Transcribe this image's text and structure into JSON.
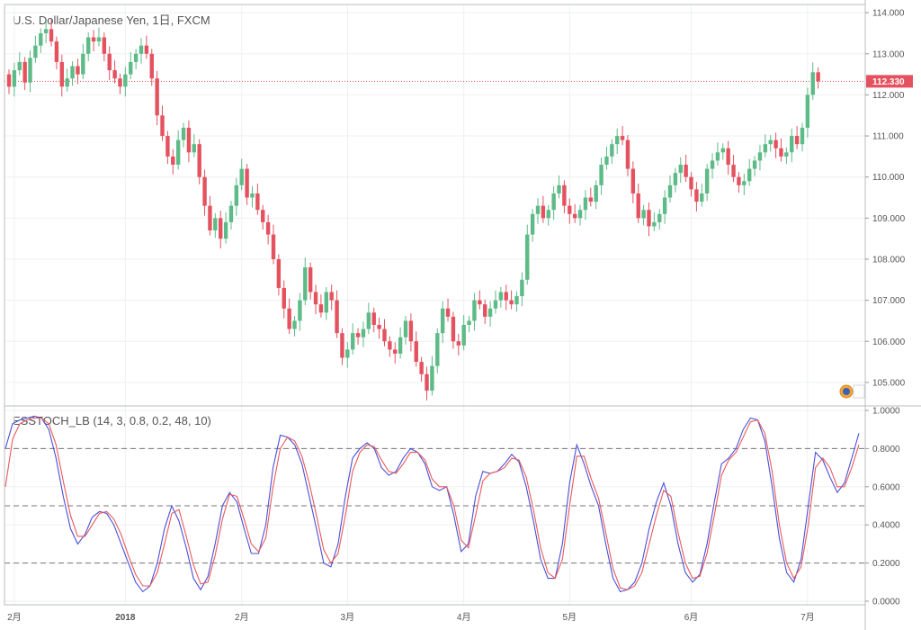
{
  "chart_data": [
    {
      "type": "candlestick",
      "title": "U.S. Dollar/Japanese Yen, 1日, FXCM",
      "ylim": [
        104.45,
        114.2
      ],
      "yticks": [
        105.0,
        106.0,
        107.0,
        108.0,
        109.0,
        110.0,
        111.0,
        112.0,
        113.0,
        114.0
      ],
      "ytick_labels": [
        "105.000",
        "106.000",
        "107.000",
        "108.000",
        "109.000",
        "110.000",
        "111.000",
        "112.000",
        "113.000",
        "114.000"
      ],
      "last_price": 112.33,
      "last_price_label": "112.330",
      "xticks": [
        {
          "index": 1,
          "label": "2月"
        },
        {
          "index": 22,
          "label": "2018"
        },
        {
          "index": 44,
          "label": "2月"
        },
        {
          "index": 64,
          "label": "3月"
        },
        {
          "index": 86,
          "label": "4月"
        },
        {
          "index": 106,
          "label": "5月"
        },
        {
          "index": 129,
          "label": "6月"
        },
        {
          "index": 151,
          "label": "7月"
        }
      ],
      "up_color": "#5dbb87",
      "down_color": "#e4525f",
      "close": [
        112.2,
        112.6,
        112.8,
        112.3,
        112.9,
        113.2,
        113.5,
        113.6,
        113.3,
        112.8,
        112.2,
        112.4,
        112.7,
        112.5,
        113.0,
        113.4,
        113.3,
        113.4,
        113.0,
        112.6,
        112.4,
        112.2,
        112.5,
        112.8,
        113.0,
        113.2,
        113.0,
        112.4,
        111.5,
        111.0,
        110.5,
        110.3,
        110.9,
        111.2,
        110.6,
        110.8,
        110.0,
        109.3,
        108.7,
        109.0,
        108.5,
        108.9,
        109.3,
        109.8,
        110.2,
        109.5,
        109.6,
        109.2,
        108.9,
        108.6,
        108.0,
        107.3,
        106.8,
        106.3,
        106.5,
        107.0,
        107.8,
        107.2,
        106.9,
        106.7,
        107.2,
        107.0,
        106.2,
        105.6,
        105.8,
        106.2,
        106.1,
        106.3,
        106.7,
        106.4,
        106.3,
        106.0,
        105.8,
        105.7,
        106.1,
        106.5,
        106.0,
        105.5,
        105.2,
        104.8,
        105.4,
        106.2,
        106.8,
        106.6,
        106.0,
        105.9,
        106.4,
        106.5,
        107.0,
        106.9,
        106.6,
        106.8,
        107.0,
        107.2,
        107.0,
        106.9,
        107.1,
        107.5,
        108.6,
        109.1,
        109.3,
        109.0,
        109.2,
        109.6,
        109.8,
        109.3,
        109.1,
        109.0,
        109.2,
        109.5,
        109.4,
        109.8,
        110.3,
        110.5,
        110.8,
        111.0,
        110.9,
        110.2,
        109.6,
        109.0,
        109.2,
        108.8,
        108.9,
        109.1,
        109.5,
        109.8,
        110.1,
        110.3,
        110.0,
        109.7,
        109.4,
        109.6,
        110.2,
        110.4,
        110.6,
        110.7,
        110.3,
        110.0,
        109.8,
        109.9,
        110.2,
        110.4,
        110.6,
        110.8,
        110.9,
        110.7,
        110.5,
        110.6,
        111.0,
        110.8,
        111.2,
        112.0,
        112.55,
        112.33
      ],
      "open": [
        112.5,
        112.2,
        112.6,
        112.8,
        112.3,
        112.9,
        113.2,
        113.5,
        113.6,
        113.3,
        112.8,
        112.2,
        112.4,
        112.7,
        112.5,
        113.0,
        113.4,
        113.3,
        113.4,
        113.0,
        112.6,
        112.4,
        112.2,
        112.5,
        112.8,
        113.0,
        113.2,
        113.0,
        112.4,
        111.5,
        111.0,
        110.5,
        110.3,
        110.9,
        111.2,
        110.6,
        110.8,
        110.0,
        109.3,
        108.7,
        109.0,
        108.5,
        108.9,
        109.3,
        109.8,
        110.2,
        109.5,
        109.6,
        109.2,
        108.9,
        108.6,
        108.0,
        107.3,
        106.8,
        106.3,
        106.5,
        107.0,
        107.8,
        107.2,
        106.9,
        106.7,
        107.2,
        107.0,
        106.2,
        105.6,
        105.8,
        106.2,
        106.1,
        106.3,
        106.7,
        106.4,
        106.3,
        106.0,
        105.8,
        105.7,
        106.1,
        106.5,
        106.0,
        105.5,
        105.2,
        104.8,
        105.4,
        106.2,
        106.8,
        106.6,
        106.0,
        105.9,
        106.4,
        106.5,
        107.0,
        106.9,
        106.6,
        106.8,
        107.0,
        107.2,
        107.0,
        106.9,
        107.1,
        107.5,
        108.6,
        109.1,
        109.3,
        109.0,
        109.2,
        109.6,
        109.8,
        109.3,
        109.1,
        109.0,
        109.2,
        109.5,
        109.4,
        109.8,
        110.3,
        110.5,
        110.8,
        111.0,
        110.9,
        110.2,
        109.6,
        109.0,
        109.2,
        108.8,
        108.9,
        109.1,
        109.5,
        109.8,
        110.1,
        110.3,
        110.0,
        109.7,
        109.4,
        109.6,
        110.2,
        110.4,
        110.6,
        110.7,
        110.3,
        110.0,
        109.8,
        109.9,
        110.2,
        110.4,
        110.6,
        110.8,
        110.9,
        110.7,
        110.5,
        110.6,
        111.0,
        110.8,
        111.2,
        112.0,
        112.55
      ]
    },
    {
      "type": "line",
      "title": "ESSTOCH_LB (14, 3, 0.8, 0.2, 48, 10)",
      "ylim": [
        0,
        1.0
      ],
      "yticks": [
        0,
        0.2,
        0.4,
        0.6,
        0.8,
        1.0
      ],
      "ytick_labels": [
        "0.0000",
        "0.2000",
        "0.4000",
        "0.6000",
        "0.8000",
        "1.0000"
      ],
      "levels": [
        0.2,
        0.5,
        0.8
      ],
      "series": [
        {
          "color": "#4b4fd8",
          "values": [
            0.8,
            0.93,
            0.95,
            0.96,
            0.97,
            0.96,
            0.9,
            0.75,
            0.55,
            0.38,
            0.3,
            0.35,
            0.44,
            0.47,
            0.46,
            0.4,
            0.3,
            0.2,
            0.1,
            0.05,
            0.08,
            0.2,
            0.38,
            0.5,
            0.42,
            0.28,
            0.12,
            0.06,
            0.13,
            0.3,
            0.5,
            0.57,
            0.52,
            0.38,
            0.25,
            0.25,
            0.4,
            0.7,
            0.87,
            0.86,
            0.82,
            0.72,
            0.55,
            0.38,
            0.2,
            0.18,
            0.3,
            0.55,
            0.75,
            0.8,
            0.83,
            0.8,
            0.7,
            0.66,
            0.68,
            0.75,
            0.8,
            0.78,
            0.72,
            0.6,
            0.58,
            0.6,
            0.45,
            0.26,
            0.3,
            0.55,
            0.68,
            0.67,
            0.68,
            0.72,
            0.77,
            0.73,
            0.6,
            0.42,
            0.22,
            0.12,
            0.12,
            0.3,
            0.62,
            0.82,
            0.72,
            0.6,
            0.5,
            0.3,
            0.12,
            0.05,
            0.06,
            0.1,
            0.2,
            0.38,
            0.52,
            0.62,
            0.5,
            0.3,
            0.15,
            0.1,
            0.14,
            0.3,
            0.52,
            0.72,
            0.75,
            0.8,
            0.9,
            0.96,
            0.95,
            0.84,
            0.6,
            0.33,
            0.15,
            0.1,
            0.22,
            0.5,
            0.78,
            0.74,
            0.65,
            0.57,
            0.62,
            0.75,
            0.88
          ]
        },
        {
          "color": "#e85a5a",
          "values": [
            0.6,
            0.85,
            0.93,
            0.95,
            0.96,
            0.96,
            0.93,
            0.82,
            0.63,
            0.45,
            0.34,
            0.34,
            0.4,
            0.46,
            0.47,
            0.43,
            0.35,
            0.24,
            0.14,
            0.08,
            0.08,
            0.15,
            0.3,
            0.46,
            0.48,
            0.34,
            0.19,
            0.09,
            0.1,
            0.24,
            0.43,
            0.56,
            0.55,
            0.43,
            0.3,
            0.26,
            0.33,
            0.6,
            0.8,
            0.86,
            0.84,
            0.76,
            0.62,
            0.45,
            0.27,
            0.2,
            0.25,
            0.45,
            0.68,
            0.78,
            0.82,
            0.81,
            0.74,
            0.68,
            0.67,
            0.72,
            0.78,
            0.78,
            0.74,
            0.64,
            0.6,
            0.6,
            0.5,
            0.32,
            0.28,
            0.45,
            0.63,
            0.67,
            0.68,
            0.7,
            0.75,
            0.74,
            0.65,
            0.48,
            0.28,
            0.15,
            0.12,
            0.22,
            0.5,
            0.76,
            0.76,
            0.64,
            0.54,
            0.36,
            0.17,
            0.07,
            0.06,
            0.08,
            0.15,
            0.3,
            0.45,
            0.58,
            0.55,
            0.36,
            0.2,
            0.12,
            0.13,
            0.25,
            0.45,
            0.66,
            0.74,
            0.78,
            0.86,
            0.94,
            0.95,
            0.88,
            0.68,
            0.4,
            0.2,
            0.12,
            0.18,
            0.4,
            0.7,
            0.75,
            0.7,
            0.6,
            0.6,
            0.7,
            0.82
          ]
        }
      ]
    }
  ]
}
